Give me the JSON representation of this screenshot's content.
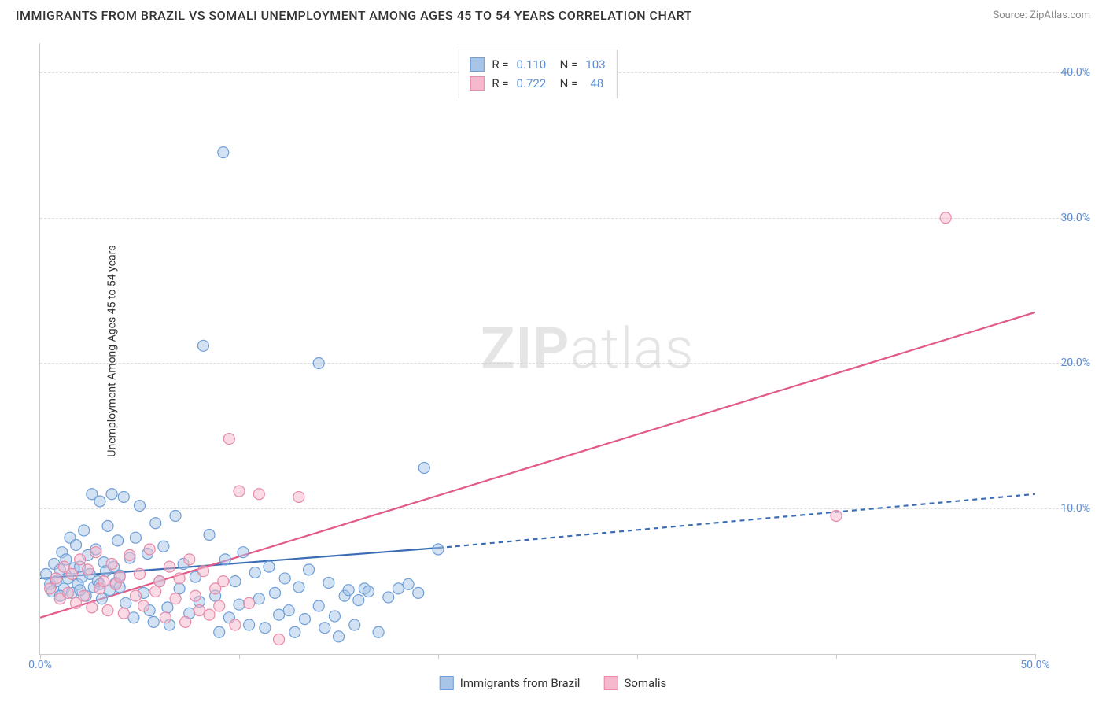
{
  "title": "IMMIGRANTS FROM BRAZIL VS SOMALI UNEMPLOYMENT AMONG AGES 45 TO 54 YEARS CORRELATION CHART",
  "source": "Source: ZipAtlas.com",
  "ylabel": "Unemployment Among Ages 45 to 54 years",
  "watermark_bold": "ZIP",
  "watermark_light": "atlas",
  "chart": {
    "type": "scatter",
    "xlim": [
      0,
      50
    ],
    "ylim": [
      0,
      42
    ],
    "xtick_step": 10,
    "ytick_step": 10,
    "xtick_labels": [
      "0.0%",
      "",
      "",
      "",
      "",
      "50.0%"
    ],
    "ytick_labels": [
      "",
      "10.0%",
      "20.0%",
      "30.0%",
      "40.0%"
    ],
    "grid_color": "#dddddd",
    "axis_color": "#cccccc",
    "tick_label_color": "#5b8dd6",
    "background_color": "#ffffff",
    "marker_radius": 7,
    "marker_opacity": 0.5,
    "marker_stroke_width": 1.2,
    "series": [
      {
        "name": "Immigrants from Brazil",
        "color_fill": "#a8c5e8",
        "color_stroke": "#6f9fd8",
        "R": "0.110",
        "N": "103",
        "trend": {
          "solid_from": [
            0,
            5.2
          ],
          "solid_to": [
            20,
            7.3
          ],
          "dashed_to": [
            50,
            11.0
          ],
          "color": "#3b6db5",
          "width": 2.2,
          "dash": "6,5"
        },
        "points": [
          [
            0.3,
            5.5
          ],
          [
            0.5,
            4.8
          ],
          [
            0.7,
            6.2
          ],
          [
            0.8,
            5.0
          ],
          [
            1.0,
            5.8
          ],
          [
            1.1,
            7.0
          ],
          [
            1.2,
            4.5
          ],
          [
            1.3,
            6.5
          ],
          [
            1.4,
            5.2
          ],
          [
            1.5,
            8.0
          ],
          [
            1.6,
            4.2
          ],
          [
            1.7,
            5.9
          ],
          [
            1.8,
            7.5
          ],
          [
            1.9,
            4.8
          ],
          [
            2.0,
            6.0
          ],
          [
            2.1,
            5.3
          ],
          [
            2.2,
            8.5
          ],
          [
            2.3,
            4.0
          ],
          [
            2.4,
            6.8
          ],
          [
            2.5,
            5.5
          ],
          [
            2.6,
            11.0
          ],
          [
            2.7,
            4.6
          ],
          [
            2.8,
            7.2
          ],
          [
            2.9,
            5.0
          ],
          [
            3.0,
            10.5
          ],
          [
            3.1,
            3.8
          ],
          [
            3.2,
            6.3
          ],
          [
            3.3,
            5.7
          ],
          [
            3.4,
            8.8
          ],
          [
            3.5,
            4.4
          ],
          [
            3.6,
            11.0
          ],
          [
            3.7,
            6.0
          ],
          [
            3.8,
            4.9
          ],
          [
            3.9,
            7.8
          ],
          [
            4.0,
            5.4
          ],
          [
            4.2,
            10.8
          ],
          [
            4.3,
            3.5
          ],
          [
            4.5,
            6.6
          ],
          [
            4.7,
            2.5
          ],
          [
            4.8,
            8.0
          ],
          [
            5.0,
            10.2
          ],
          [
            5.2,
            4.2
          ],
          [
            5.4,
            6.9
          ],
          [
            5.5,
            3.0
          ],
          [
            5.7,
            2.2
          ],
          [
            5.8,
            9.0
          ],
          [
            6.0,
            5.0
          ],
          [
            6.2,
            7.4
          ],
          [
            6.4,
            3.2
          ],
          [
            6.5,
            2.0
          ],
          [
            6.8,
            9.5
          ],
          [
            7.0,
            4.5
          ],
          [
            7.2,
            6.2
          ],
          [
            7.5,
            2.8
          ],
          [
            7.8,
            5.3
          ],
          [
            8.0,
            3.6
          ],
          [
            8.2,
            21.2
          ],
          [
            8.5,
            8.2
          ],
          [
            8.8,
            4.0
          ],
          [
            9.0,
            1.5
          ],
          [
            9.2,
            34.5
          ],
          [
            9.3,
            6.5
          ],
          [
            9.5,
            2.5
          ],
          [
            9.8,
            5.0
          ],
          [
            10.0,
            3.4
          ],
          [
            10.2,
            7.0
          ],
          [
            10.5,
            2.0
          ],
          [
            10.8,
            5.6
          ],
          [
            11.0,
            3.8
          ],
          [
            11.3,
            1.8
          ],
          [
            11.5,
            6.0
          ],
          [
            11.8,
            4.2
          ],
          [
            12.0,
            2.7
          ],
          [
            12.3,
            5.2
          ],
          [
            12.5,
            3.0
          ],
          [
            12.8,
            1.5
          ],
          [
            13.0,
            4.6
          ],
          [
            13.3,
            2.4
          ],
          [
            13.5,
            5.8
          ],
          [
            14.0,
            20.0
          ],
          [
            14.0,
            3.3
          ],
          [
            14.3,
            1.8
          ],
          [
            14.5,
            4.9
          ],
          [
            14.8,
            2.6
          ],
          [
            15.0,
            1.2
          ],
          [
            15.3,
            4.0
          ],
          [
            15.5,
            4.4
          ],
          [
            15.8,
            2.0
          ],
          [
            16.0,
            3.7
          ],
          [
            16.3,
            4.5
          ],
          [
            16.5,
            4.3
          ],
          [
            17.0,
            1.5
          ],
          [
            17.5,
            3.9
          ],
          [
            18.0,
            4.5
          ],
          [
            18.5,
            4.8
          ],
          [
            19.0,
            4.2
          ],
          [
            19.3,
            12.8
          ],
          [
            20.0,
            7.2
          ],
          [
            0.6,
            4.3
          ],
          [
            1.0,
            4.0
          ],
          [
            2.0,
            4.4
          ],
          [
            3.0,
            4.8
          ],
          [
            4.0,
            4.6
          ]
        ]
      },
      {
        "name": "Somalis",
        "color_fill": "#f5b8cc",
        "color_stroke": "#e88aa8",
        "R": "0.722",
        "N": "48",
        "trend": {
          "solid_from": [
            0,
            2.5
          ],
          "solid_to": [
            50,
            23.5
          ],
          "dashed_to": null,
          "color": "#e15a8a",
          "width": 2.2,
          "dash": null
        },
        "points": [
          [
            0.5,
            4.5
          ],
          [
            0.8,
            5.2
          ],
          [
            1.0,
            3.8
          ],
          [
            1.2,
            6.0
          ],
          [
            1.4,
            4.2
          ],
          [
            1.6,
            5.5
          ],
          [
            1.8,
            3.5
          ],
          [
            2.0,
            6.5
          ],
          [
            2.2,
            4.0
          ],
          [
            2.4,
            5.8
          ],
          [
            2.6,
            3.2
          ],
          [
            2.8,
            7.0
          ],
          [
            3.0,
            4.5
          ],
          [
            3.2,
            5.0
          ],
          [
            3.4,
            3.0
          ],
          [
            3.6,
            6.2
          ],
          [
            3.8,
            4.8
          ],
          [
            4.0,
            5.3
          ],
          [
            4.2,
            2.8
          ],
          [
            4.5,
            6.8
          ],
          [
            4.8,
            4.0
          ],
          [
            5.0,
            5.5
          ],
          [
            5.2,
            3.3
          ],
          [
            5.5,
            7.2
          ],
          [
            5.8,
            4.3
          ],
          [
            6.0,
            5.0
          ],
          [
            6.3,
            2.5
          ],
          [
            6.5,
            6.0
          ],
          [
            6.8,
            3.8
          ],
          [
            7.0,
            5.2
          ],
          [
            7.3,
            2.2
          ],
          [
            7.5,
            6.5
          ],
          [
            7.8,
            4.0
          ],
          [
            8.0,
            3.0
          ],
          [
            8.2,
            5.7
          ],
          [
            8.5,
            2.7
          ],
          [
            8.8,
            4.5
          ],
          [
            9.0,
            3.3
          ],
          [
            9.2,
            5.0
          ],
          [
            9.5,
            14.8
          ],
          [
            9.8,
            2.0
          ],
          [
            10.0,
            11.2
          ],
          [
            10.5,
            3.5
          ],
          [
            11.0,
            11.0
          ],
          [
            12.0,
            1.0
          ],
          [
            13.0,
            10.8
          ],
          [
            40.0,
            9.5
          ],
          [
            45.5,
            30.0
          ]
        ]
      }
    ]
  },
  "legend_bottom": {
    "series1_label": "Immigrants from Brazil",
    "series2_label": "Somalis"
  }
}
